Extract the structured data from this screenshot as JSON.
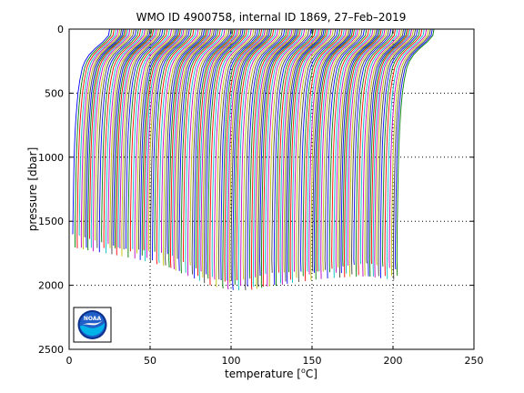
{
  "chart_data": {
    "type": "line",
    "title": "WMO ID 4900758, internal ID 1869, 27–Feb–2019",
    "xlabel_main": "temperature [",
    "xlabel_degree": "o",
    "xlabel_end": "C]",
    "ylabel": "pressure [dbar]",
    "xlim": [
      0,
      250
    ],
    "ylim": [
      0,
      2500
    ],
    "y_inverted": true,
    "x_ticks": [
      0,
      50,
      100,
      150,
      200,
      250
    ],
    "y_ticks": [
      0,
      500,
      1000,
      1500,
      2000,
      2500
    ],
    "x_tick_labels": [
      "0",
      "50",
      "100",
      "150",
      "200",
      "250"
    ],
    "y_tick_labels": [
      "0",
      "500",
      "1000",
      "1500",
      "2000",
      "2500"
    ],
    "grid": true,
    "grid_style": "dotted",
    "profiles": {
      "count": 170,
      "x_start_range": [
        25,
        225
      ],
      "x_end_range": [
        2,
        202
      ],
      "bottom_pressure_range": [
        1600,
        2040
      ],
      "pressure_levels": [
        0,
        50,
        100,
        150,
        200,
        250,
        300,
        400,
        500,
        600,
        700,
        800,
        900,
        1000,
        1200,
        1400,
        1600,
        1800,
        2000
      ],
      "shape_fractions": [
        0,
        0.03,
        0.18,
        0.38,
        0.55,
        0.66,
        0.73,
        0.8,
        0.85,
        0.88,
        0.905,
        0.925,
        0.94,
        0.952,
        0.968,
        0.98,
        0.99,
        0.996,
        1
      ],
      "colors": [
        "#0000ff",
        "#008000",
        "#ff0000",
        "#00bfbf",
        "#bf00bf",
        "#bfbf00",
        "#404040"
      ]
    },
    "logo_text": "NOAA"
  }
}
